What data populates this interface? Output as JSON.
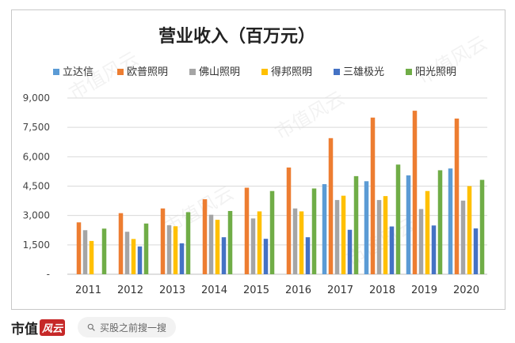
{
  "chart_data": {
    "type": "bar",
    "title": "营业收入（百万元）",
    "categories": [
      "2011",
      "2012",
      "2013",
      "2014",
      "2015",
      "2016",
      "2017",
      "2018",
      "2019",
      "2020"
    ],
    "y_tick_labels": [
      "-",
      "1,500",
      "3,000",
      "4,500",
      "6,000",
      "7,500",
      "9,000"
    ],
    "ylim": [
      0,
      9000
    ],
    "grid": true,
    "legend_position": "top",
    "series": [
      {
        "name": "立达信",
        "color": "#5b9bd5",
        "values": [
          null,
          null,
          null,
          null,
          null,
          null,
          4600,
          4750,
          5050,
          5400
        ]
      },
      {
        "name": "欧普照明",
        "color": "#ed7d31",
        "values": [
          2650,
          3120,
          3360,
          3830,
          4420,
          5450,
          6950,
          8000,
          8350,
          7950
        ]
      },
      {
        "name": "佛山照明",
        "color": "#a5a5a5",
        "values": [
          2250,
          2170,
          2500,
          3040,
          2850,
          3360,
          3790,
          3790,
          3330,
          3760
        ]
      },
      {
        "name": "得邦照明",
        "color": "#ffc000",
        "values": [
          1700,
          1800,
          2450,
          2780,
          3210,
          3210,
          4010,
          3990,
          4250,
          4500
        ]
      },
      {
        "name": "三雄极光",
        "color": "#4472c4",
        "values": [
          null,
          1420,
          1580,
          1890,
          1810,
          1890,
          2270,
          2440,
          2490,
          2340
        ]
      },
      {
        "name": "阳光照明",
        "color": "#70ad47",
        "values": [
          2330,
          2590,
          3170,
          3230,
          4250,
          4380,
          5010,
          5600,
          5310,
          4820
        ]
      }
    ]
  },
  "footer": {
    "logo_text": "市值",
    "logo_seal": "风云",
    "search_placeholder": "买股之前搜一搜"
  },
  "watermark": "市值风云"
}
